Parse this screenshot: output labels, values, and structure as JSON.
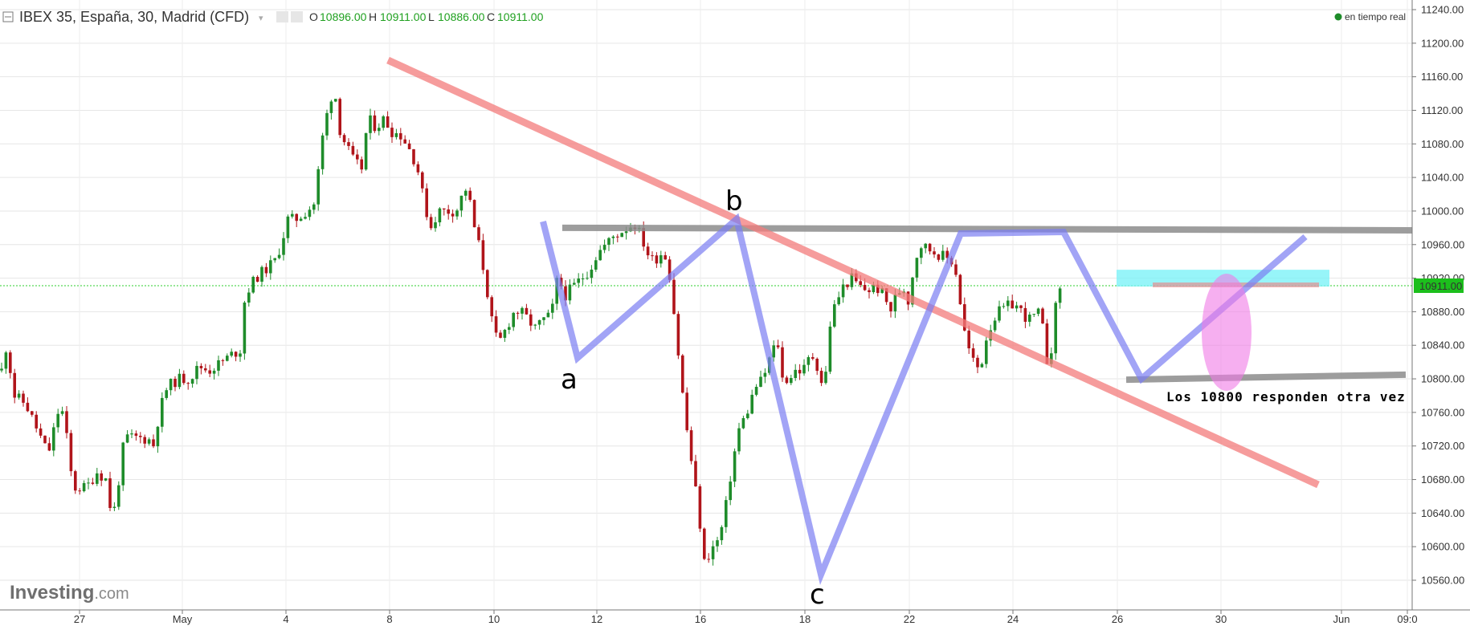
{
  "header": {
    "symbol": "IBEX 35, España, 30, Madrid (CFD)",
    "open_label": "O",
    "open_value": "10896.00",
    "high_label": "H",
    "high_value": "10911.00",
    "low_label": "L",
    "low_value": "10886.00",
    "close_label": "C",
    "close_value": "10911.00",
    "live_label": "en tiempo real"
  },
  "branding": {
    "name": "Investing",
    "suffix": ".com"
  },
  "colors": {
    "up_candle": "#1e8c2a",
    "down_candle": "#b0141a",
    "trendline_red": "#f47c7c",
    "pattern_blue": "#7b7ef2",
    "level_gray": "#8c8c8c",
    "cyan_zone": "#7df2f7",
    "magenta_ellipse": "#f07ae6",
    "price_tag": "#1cbf1c"
  },
  "chart_data": {
    "type": "candlestick",
    "timeframe": "30",
    "ylim": [
      10540,
      11250
    ],
    "yticks": [
      "11240.00",
      "11200.00",
      "11160.00",
      "11120.00",
      "11080.00",
      "11040.00",
      "11000.00",
      "10960.00",
      "10920.00",
      "10880.00",
      "10840.00",
      "10800.00",
      "10760.00",
      "10720.00",
      "10680.00",
      "10640.00",
      "10600.00",
      "10560.00"
    ],
    "xticks": [
      "27",
      "May",
      "4",
      "8",
      "10",
      "12",
      "16",
      "18",
      "22",
      "24",
      "26",
      "30",
      "Jun",
      "09:0"
    ],
    "current_price": "10911.00",
    "price_path": [
      [
        0,
        10800
      ],
      [
        8,
        10840
      ],
      [
        18,
        10780
      ],
      [
        32,
        10770
      ],
      [
        46,
        10740
      ],
      [
        60,
        10710
      ],
      [
        72,
        10760
      ],
      [
        80,
        10760
      ],
      [
        86,
        10700
      ],
      [
        92,
        10670
      ],
      [
        104,
        10670
      ],
      [
        112,
        10675
      ],
      [
        120,
        10690
      ],
      [
        132,
        10680
      ],
      [
        140,
        10630
      ],
      [
        148,
        10680
      ],
      [
        155,
        10730
      ],
      [
        170,
        10730
      ],
      [
        185,
        10728
      ],
      [
        192,
        10720
      ],
      [
        198,
        10760
      ],
      [
        208,
        10790
      ],
      [
        222,
        10800
      ],
      [
        236,
        10800
      ],
      [
        248,
        10815
      ],
      [
        260,
        10810
      ],
      [
        276,
        10820
      ],
      [
        290,
        10830
      ],
      [
        300,
        10835
      ],
      [
        305,
        10900
      ],
      [
        318,
        10920
      ],
      [
        330,
        10930
      ],
      [
        342,
        10940
      ],
      [
        350,
        10960
      ],
      [
        358,
        10990
      ],
      [
        368,
        10990
      ],
      [
        382,
        11000
      ],
      [
        392,
        11010
      ],
      [
        400,
        11080
      ],
      [
        408,
        11120
      ],
      [
        416,
        11150
      ],
      [
        422,
        11100
      ],
      [
        430,
        11080
      ],
      [
        440,
        11060
      ],
      [
        450,
        11050
      ],
      [
        458,
        11110
      ],
      [
        468,
        11100
      ],
      [
        478,
        11110
      ],
      [
        488,
        11095
      ],
      [
        500,
        11090
      ],
      [
        512,
        11070
      ],
      [
        520,
        11050
      ],
      [
        528,
        11010
      ],
      [
        536,
        10980
      ],
      [
        546,
        11000
      ],
      [
        558,
        11000
      ],
      [
        568,
        11000
      ],
      [
        576,
        11020
      ],
      [
        582,
        11030
      ],
      [
        588,
        10990
      ],
      [
        596,
        10960
      ],
      [
        604,
        10920
      ],
      [
        612,
        10870
      ],
      [
        620,
        10840
      ],
      [
        630,
        10860
      ],
      [
        640,
        10880
      ],
      [
        648,
        10880
      ],
      [
        658,
        10870
      ],
      [
        666,
        10860
      ],
      [
        676,
        10870
      ],
      [
        686,
        10875
      ],
      [
        694,
        10920
      ],
      [
        704,
        10900
      ],
      [
        714,
        10910
      ],
      [
        724,
        10920
      ],
      [
        734,
        10930
      ],
      [
        744,
        10950
      ],
      [
        754,
        10960
      ],
      [
        764,
        10970
      ],
      [
        772,
        10975
      ],
      [
        780,
        10980
      ],
      [
        790,
        10985
      ],
      [
        798,
        10970
      ],
      [
        806,
        10950
      ],
      [
        814,
        10940
      ],
      [
        822,
        10950
      ],
      [
        830,
        10945
      ],
      [
        836,
        10910
      ],
      [
        842,
        10850
      ],
      [
        848,
        10800
      ],
      [
        852,
        10760
      ],
      [
        858,
        10720
      ],
      [
        864,
        10680
      ],
      [
        870,
        10640
      ],
      [
        876,
        10580
      ],
      [
        882,
        10590
      ],
      [
        888,
        10600
      ],
      [
        896,
        10610
      ],
      [
        904,
        10650
      ],
      [
        912,
        10700
      ],
      [
        920,
        10740
      ],
      [
        930,
        10760
      ],
      [
        940,
        10790
      ],
      [
        950,
        10800
      ],
      [
        960,
        10830
      ],
      [
        968,
        10845
      ],
      [
        974,
        10800
      ],
      [
        982,
        10800
      ],
      [
        990,
        10810
      ],
      [
        1000,
        10810
      ],
      [
        1010,
        10830
      ],
      [
        1020,
        10810
      ],
      [
        1026,
        10780
      ],
      [
        1032,
        10860
      ],
      [
        1040,
        10890
      ],
      [
        1050,
        10910
      ],
      [
        1060,
        10920
      ],
      [
        1070,
        10910
      ],
      [
        1080,
        10905
      ],
      [
        1090,
        10910
      ],
      [
        1100,
        10900
      ],
      [
        1108,
        10880
      ],
      [
        1116,
        10900
      ],
      [
        1124,
        10910
      ],
      [
        1132,
        10890
      ],
      [
        1138,
        10940
      ],
      [
        1146,
        10960
      ],
      [
        1156,
        10955
      ],
      [
        1166,
        10950
      ],
      [
        1176,
        10945
      ],
      [
        1186,
        10940
      ],
      [
        1192,
        10920
      ],
      [
        1198,
        10870
      ],
      [
        1204,
        10840
      ],
      [
        1212,
        10820
      ],
      [
        1220,
        10810
      ],
      [
        1228,
        10850
      ],
      [
        1236,
        10870
      ],
      [
        1244,
        10880
      ],
      [
        1252,
        10885
      ],
      [
        1262,
        10890
      ],
      [
        1272,
        10880
      ],
      [
        1280,
        10870
      ],
      [
        1288,
        10875
      ],
      [
        1296,
        10880
      ],
      [
        1302,
        10820
      ],
      [
        1308,
        10830
      ],
      [
        1316,
        10900
      ],
      [
        1320,
        10911
      ]
    ],
    "annotations": {
      "labels": [
        "a",
        "b",
        "c"
      ],
      "note": "Los 10800 responden otra vez",
      "horizontal_levels": [
        10980,
        10800
      ],
      "resistance_zone": [
        10910,
        10930
      ]
    }
  }
}
